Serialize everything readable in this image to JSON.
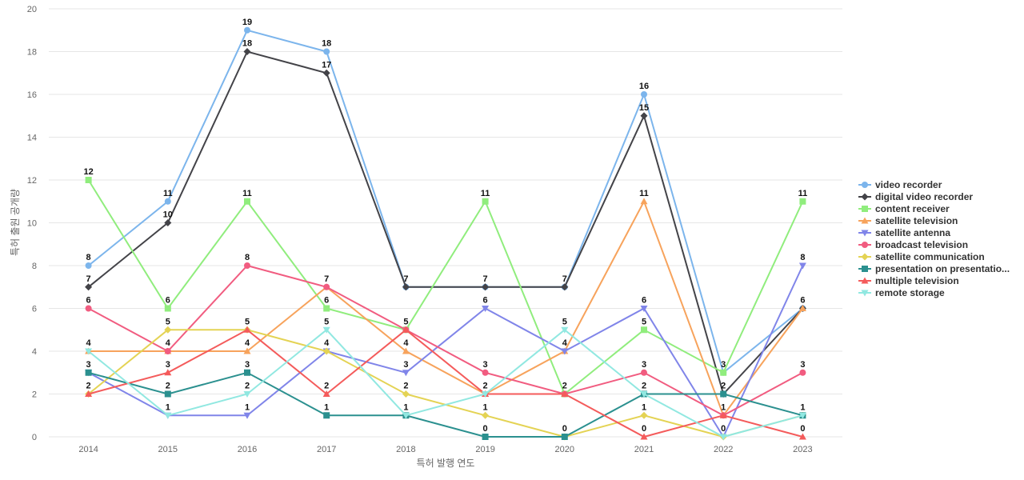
{
  "chart_data": {
    "type": "line",
    "title": "",
    "xlabel": "특허 발행 연도",
    "ylabel": "특허 출원 공개량",
    "x": [
      "2014",
      "2015",
      "2016",
      "2017",
      "2018",
      "2019",
      "2020",
      "2021",
      "2022",
      "2023"
    ],
    "ylim": [
      0,
      20
    ],
    "yticks": [
      0,
      2,
      4,
      6,
      8,
      10,
      12,
      14,
      16,
      18,
      20
    ],
    "grid": true,
    "legend_position": "right",
    "series": [
      {
        "name": "video recorder",
        "color": "#7cb5ec",
        "marker": "circle",
        "values": [
          8,
          11,
          19,
          18,
          7,
          7,
          7,
          16,
          3,
          6
        ]
      },
      {
        "name": "digital video recorder",
        "color": "#434348",
        "marker": "diamond",
        "values": [
          7,
          10,
          18,
          17,
          7,
          7,
          7,
          15,
          2,
          6
        ]
      },
      {
        "name": "content receiver",
        "color": "#90ed7d",
        "marker": "square",
        "values": [
          12,
          6,
          11,
          6,
          5,
          11,
          2,
          5,
          3,
          11
        ]
      },
      {
        "name": "satellite television",
        "color": "#f7a35c",
        "marker": "triangle",
        "values": [
          4,
          4,
          4,
          7,
          4,
          2,
          4,
          11,
          1,
          6
        ]
      },
      {
        "name": "satellite antenna",
        "color": "#8085e9",
        "marker": "triangle-down",
        "values": [
          3,
          1,
          1,
          4,
          3,
          6,
          4,
          6,
          0,
          8
        ]
      },
      {
        "name": "broadcast television",
        "color": "#f15c80",
        "marker": "circle",
        "values": [
          6,
          4,
          8,
          7,
          5,
          3,
          2,
          3,
          1,
          3
        ]
      },
      {
        "name": "satellite communication",
        "color": "#e4d354",
        "marker": "diamond",
        "values": [
          2,
          5,
          5,
          4,
          2,
          1,
          0,
          1,
          0,
          1
        ]
      },
      {
        "name": "presentation on presentatio...",
        "color": "#2b908f",
        "marker": "square",
        "values": [
          3,
          2,
          3,
          1,
          1,
          0,
          0,
          2,
          2,
          1
        ]
      },
      {
        "name": "multiple television",
        "color": "#f45b5b",
        "marker": "triangle",
        "values": [
          2,
          3,
          5,
          2,
          5,
          2,
          2,
          0,
          1,
          0
        ]
      },
      {
        "name": "remote storage",
        "color": "#91e8e1",
        "marker": "triangle-down",
        "values": [
          4,
          1,
          2,
          5,
          1,
          2,
          5,
          2,
          0,
          1
        ]
      }
    ],
    "data_labels": [
      {
        "x": "2014",
        "value": 12
      },
      {
        "x": "2014",
        "value": 8
      },
      {
        "x": "2014",
        "value": 7
      },
      {
        "x": "2014",
        "value": 6
      },
      {
        "x": "2014",
        "value": 4
      },
      {
        "x": "2014",
        "value": 3
      },
      {
        "x": "2014",
        "value": 2
      },
      {
        "x": "2015",
        "value": 11
      },
      {
        "x": "2015",
        "value": 10
      },
      {
        "x": "2015",
        "value": 6
      },
      {
        "x": "2015",
        "value": 5
      },
      {
        "x": "2015",
        "value": 4
      },
      {
        "x": "2015",
        "value": 3
      },
      {
        "x": "2015",
        "value": 2
      },
      {
        "x": "2015",
        "value": 1
      },
      {
        "x": "2016",
        "value": 19
      },
      {
        "x": "2016",
        "value": 18
      },
      {
        "x": "2016",
        "value": 11
      },
      {
        "x": "2016",
        "value": 8
      },
      {
        "x": "2016",
        "value": 5
      },
      {
        "x": "2016",
        "value": 4
      },
      {
        "x": "2016",
        "value": 3
      },
      {
        "x": "2016",
        "value": 2
      },
      {
        "x": "2016",
        "value": 1
      },
      {
        "x": "2017",
        "value": 18
      },
      {
        "x": "2017",
        "value": 17
      },
      {
        "x": "2017",
        "value": 7
      },
      {
        "x": "2017",
        "value": 6
      },
      {
        "x": "2017",
        "value": 5
      },
      {
        "x": "2017",
        "value": 4
      },
      {
        "x": "2017",
        "value": 2
      },
      {
        "x": "2017",
        "value": 1
      },
      {
        "x": "2018",
        "value": 7
      },
      {
        "x": "2018",
        "value": 5
      },
      {
        "x": "2018",
        "value": 4
      },
      {
        "x": "2018",
        "value": 3
      },
      {
        "x": "2018",
        "value": 2
      },
      {
        "x": "2018",
        "value": 1
      },
      {
        "x": "2019",
        "value": 11
      },
      {
        "x": "2019",
        "value": 7
      },
      {
        "x": "2019",
        "value": 6
      },
      {
        "x": "2019",
        "value": 3
      },
      {
        "x": "2019",
        "value": 2
      },
      {
        "x": "2019",
        "value": 1
      },
      {
        "x": "2019",
        "value": 0
      },
      {
        "x": "2020",
        "value": 7
      },
      {
        "x": "2020",
        "value": 5
      },
      {
        "x": "2020",
        "value": 4
      },
      {
        "x": "2020",
        "value": 2
      },
      {
        "x": "2020",
        "value": 0
      },
      {
        "x": "2021",
        "value": 16
      },
      {
        "x": "2021",
        "value": 15
      },
      {
        "x": "2021",
        "value": 11
      },
      {
        "x": "2021",
        "value": 6
      },
      {
        "x": "2021",
        "value": 5
      },
      {
        "x": "2021",
        "value": 3
      },
      {
        "x": "2021",
        "value": 2
      },
      {
        "x": "2021",
        "value": 1
      },
      {
        "x": "2021",
        "value": 0
      },
      {
        "x": "2022",
        "value": 3
      },
      {
        "x": "2022",
        "value": 2
      },
      {
        "x": "2022",
        "value": 1
      },
      {
        "x": "2022",
        "value": 0
      },
      {
        "x": "2023",
        "value": 11
      },
      {
        "x": "2023",
        "value": 8
      },
      {
        "x": "2023",
        "value": 6
      },
      {
        "x": "2023",
        "value": 3
      },
      {
        "x": "2023",
        "value": 1
      },
      {
        "x": "2023",
        "value": 0
      }
    ]
  }
}
